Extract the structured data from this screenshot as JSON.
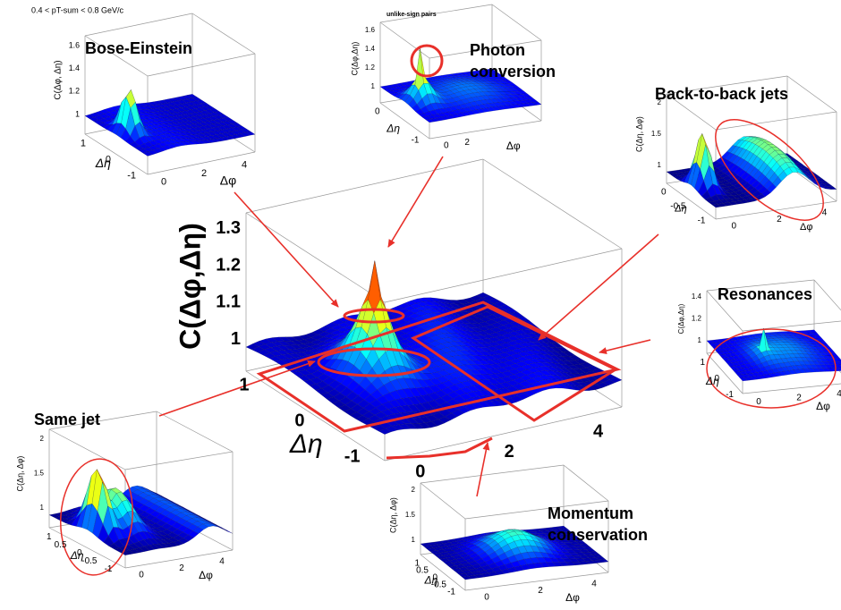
{
  "main": {
    "zlabel": "C(Δφ,Δη)",
    "zticks": [
      "1",
      "1.1",
      "1.2",
      "1.3"
    ],
    "eta_label": "Δη",
    "eta_ticks": [
      "1",
      "0",
      "-1"
    ],
    "phi_ticks": [
      "0",
      "2",
      "4"
    ]
  },
  "panels": [
    {
      "title": "Bose-Einstein",
      "header": "0.4 < pT-sum < 0.8 GeV/c",
      "zlabel": "C(Δφ, Δη)",
      "zticks": [
        "1",
        "1.2",
        "1.4",
        "1.6"
      ],
      "eta_label": "Δη",
      "eta_ticks": [
        "1",
        "0",
        "-1"
      ],
      "phi_label": "Δφ",
      "phi_ticks": [
        "0",
        "2",
        "4"
      ]
    },
    {
      "title": [
        "Photon",
        "conversion"
      ],
      "header": "unlike-sign pairs",
      "zlabel": "C(Δφ,Δη)",
      "zticks": [
        "1",
        "1.2",
        "1.4",
        "1.6"
      ],
      "eta_label": "Δη",
      "eta_ticks": [
        "0",
        "-1"
      ],
      "phi_label": "Δφ",
      "phi_ticks": [
        "0",
        "2"
      ]
    },
    {
      "title": "Back-to-back jets",
      "zlabel": "C(Δη, Δφ)",
      "zticks": [
        "1",
        "1.5",
        "2"
      ],
      "eta_label": "Δη",
      "eta_ticks": [
        "0",
        "-0.5",
        "-1"
      ],
      "phi_label": "Δφ",
      "phi_ticks": [
        "0",
        "2",
        "4"
      ]
    },
    {
      "title": "Resonances",
      "zlabel": "C(Δφ,Δη)",
      "zticks": [
        "1",
        "1.2",
        "1.4"
      ],
      "eta_label": "Δη",
      "eta_ticks": [
        "1",
        "0",
        "-1"
      ],
      "phi_label": "Δφ",
      "phi_ticks": [
        "0",
        "2",
        "4"
      ]
    },
    {
      "title": "Same jet",
      "zlabel": "C(Δη, Δφ)",
      "zticks": [
        "1",
        "1.5",
        "2"
      ],
      "eta_label": "Δη",
      "eta_ticks": [
        "1",
        "0.5",
        "0",
        "-0.5",
        "-1"
      ],
      "phi_label": "Δφ",
      "phi_ticks": [
        "0",
        "2",
        "4"
      ]
    },
    {
      "title": [
        "Momentum",
        "conservation"
      ],
      "zlabel": "C(Δη, Δφ)",
      "zticks": [
        "1",
        "1.5",
        "2"
      ],
      "eta_label": "Δη",
      "eta_ticks": [
        "1",
        "0.5",
        "0",
        "-0.5",
        "-1"
      ],
      "phi_label": "Δφ",
      "phi_ticks": [
        "0",
        "2",
        "4"
      ]
    }
  ]
}
